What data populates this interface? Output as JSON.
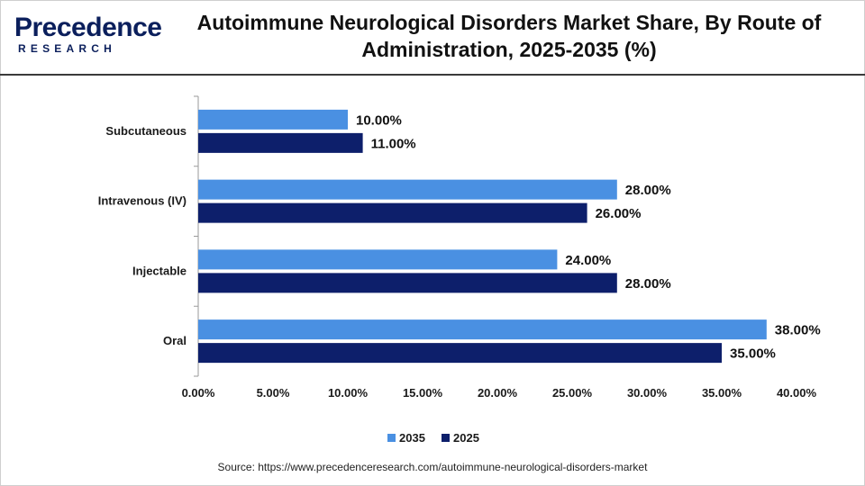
{
  "logo": {
    "brand": "Precedence",
    "sub": "RESEARCH"
  },
  "title": "Autoimmune Neurological Disorders Market Share, By Route of Administration, 2025-2035 (%)",
  "source": "Source: https://www.precedenceresearch.com/autoimmune-neurological-disorders-market",
  "colors": {
    "series_2035": "#4a90e2",
    "series_2025": "#0d1f6b",
    "brand": "#0b1f5c"
  },
  "chart_data": {
    "type": "bar",
    "orientation": "horizontal",
    "title": "Autoimmune Neurological Disorders Market Share, By Route of Administration, 2025-2035 (%)",
    "xlabel": "",
    "ylabel": "",
    "categories": [
      "Subcutaneous",
      "Intravenous (IV)",
      "Injectable",
      "Oral"
    ],
    "series": [
      {
        "name": "2035",
        "values": [
          10,
          28,
          24,
          38
        ],
        "labels": [
          "10.00%",
          "28.00%",
          "24.00%",
          "38.00%"
        ]
      },
      {
        "name": "2025",
        "values": [
          11,
          26,
          28,
          35
        ],
        "labels": [
          "11.00%",
          "26.00%",
          "28.00%",
          "35.00%"
        ]
      }
    ],
    "xlim": [
      0,
      40
    ],
    "ticks": [
      0,
      5,
      10,
      15,
      20,
      25,
      30,
      35,
      40
    ],
    "tick_labels": [
      "0.00%",
      "5.00%",
      "10.00%",
      "15.00%",
      "20.00%",
      "25.00%",
      "30.00%",
      "35.00%",
      "40.00%"
    ],
    "grid": false,
    "legend": "bottom-center"
  }
}
